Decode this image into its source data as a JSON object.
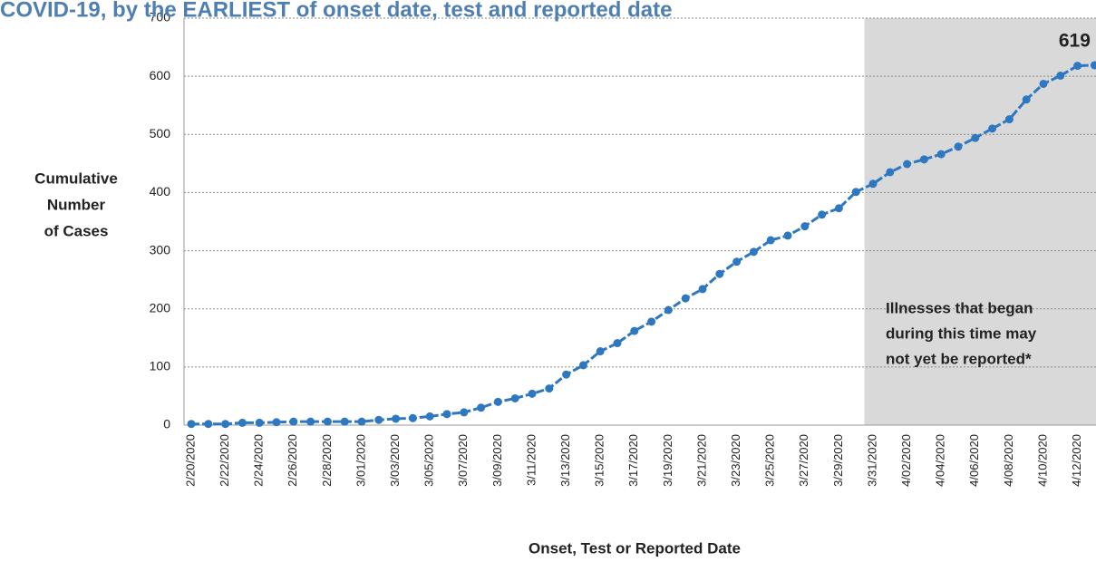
{
  "chart_data": {
    "type": "line",
    "title": "COVID-19, by the EARLIEST of onset date, test and reported date",
    "y_label": [
      "Cumulative",
      "Number",
      "of Cases"
    ],
    "x_label": "Onset, Test or Reported Date",
    "annotation": [
      "Illnesses that began",
      "during this time may",
      "not yet be reported*"
    ],
    "shaded_from": "3/31/2020",
    "categories": [
      "2/20/2020",
      null,
      "2/22/2020",
      null,
      "2/24/2020",
      null,
      "2/26/2020",
      null,
      "2/28/2020",
      null,
      "3/01/2020",
      null,
      "3/03/2020",
      null,
      "3/05/2020",
      null,
      "3/07/2020",
      null,
      "3/09/2020",
      null,
      "3/11/2020",
      null,
      "3/13/2020",
      null,
      "3/15/2020",
      null,
      "3/17/2020",
      null,
      "3/19/2020",
      null,
      "3/21/2020",
      null,
      "3/23/2020",
      null,
      "3/25/2020",
      null,
      "3/27/2020",
      null,
      "3/29/2020",
      null,
      "3/31/2020",
      null,
      "4/02/2020",
      null,
      "4/04/2020",
      null,
      "4/06/2020",
      null,
      "4/08/2020",
      null,
      "4/10/2020",
      null,
      "4/12/2020",
      null
    ],
    "series": [
      {
        "color": "#2e78c2",
        "values": [
          2,
          2,
          2,
          4,
          4,
          5,
          6,
          6,
          6,
          6,
          6,
          9,
          11,
          12,
          15,
          19,
          22,
          30,
          40,
          46,
          54,
          63,
          87,
          103,
          127,
          141,
          162,
          178,
          198,
          218,
          234,
          260,
          281,
          298,
          318,
          326,
          342,
          362,
          373,
          401,
          415,
          435,
          449,
          457,
          466,
          479,
          494,
          510,
          526,
          560,
          587,
          601,
          618,
          619
        ],
        "value_labels": [
          null,
          null,
          null,
          null,
          null,
          null,
          null,
          null,
          null,
          null,
          null,
          null,
          null,
          null,
          null,
          null,
          null,
          null,
          null,
          null,
          null,
          null,
          null,
          null,
          null,
          null,
          null,
          null,
          null,
          null,
          null,
          null,
          null,
          null,
          null,
          null,
          null,
          null,
          null,
          null,
          null,
          null,
          null,
          null,
          null,
          null,
          null,
          null,
          null,
          null,
          null,
          null,
          null,
          "619"
        ]
      }
    ],
    "ylim": [
      0,
      700
    ],
    "yticks": [
      0,
      100,
      200,
      300,
      400,
      500,
      600,
      700
    ],
    "grid": true
  }
}
